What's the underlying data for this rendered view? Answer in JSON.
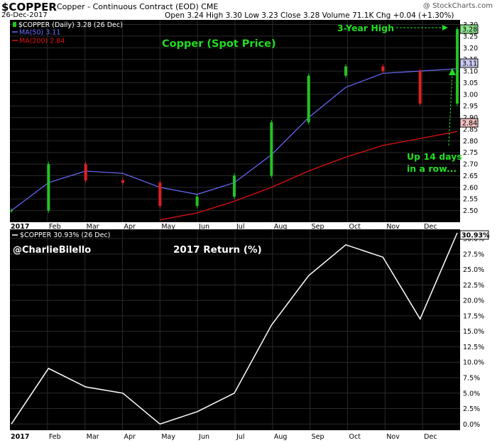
{
  "header": {
    "symbol": "$COPPER",
    "description": "Copper - Continuous Contract (EOD)",
    "exchange": "CME",
    "date": "26-Dec-2017",
    "stats": "Open 3.24  High 3.30  Low 3.23  Close 3.28  Volume 71.1K  Chg +0.04 (+1.30%)",
    "watermark": "@ StockCharts.com"
  },
  "top_panel": {
    "legend_main": "$COPPER (Daily) 3.28 (26 Dec)",
    "legend_ma50": "MA(50) 3.11",
    "legend_ma200": "MA(200) 2.84",
    "title": "Copper (Spot Price)",
    "annotation_high": "3-Year High",
    "annotation_up_line1": "Up 14 days",
    "annotation_up_line2": "in a row...",
    "tag_price": "3.28",
    "tag_ma50": "3.11",
    "tag_ma200": "2.84"
  },
  "bottom_panel": {
    "legend": "$COPPER 30.93% (26 Dec)",
    "handle": "@CharlieBilello",
    "title": "2017 Return (%)",
    "tag_value": "30.93%"
  },
  "colors": {
    "background": "#000000",
    "up_candle": "#22c322",
    "down_candle": "#e02020",
    "ma50": "#6b6bff",
    "ma200": "#e01010",
    "annotation": "#22dd22",
    "return_line": "#ffffff"
  },
  "chart_data": [
    {
      "type": "line",
      "title": "Copper (Spot Price)",
      "x_labels": [
        "2017",
        "Feb",
        "Mar",
        "Apr",
        "May",
        "Jun",
        "Jul",
        "Aug",
        "Sep",
        "Oct",
        "Nov",
        "Dec"
      ],
      "y_ticks": [
        2.5,
        2.55,
        2.6,
        2.65,
        2.7,
        2.75,
        2.8,
        2.85,
        2.9,
        2.95,
        3.0,
        3.05,
        3.1,
        3.15,
        3.2,
        3.25,
        3.3
      ],
      "ylim": [
        2.45,
        3.32
      ],
      "series": [
        {
          "name": "$COPPER (Daily)",
          "x": [
            "Jan",
            "Feb",
            "Mar",
            "Apr",
            "May",
            "Jun",
            "Jul",
            "Aug",
            "Sep",
            "Oct",
            "Nov",
            "Dec",
            "26 Dec"
          ],
          "values": [
            2.5,
            2.7,
            2.63,
            2.62,
            2.52,
            2.56,
            2.65,
            2.88,
            3.08,
            3.12,
            3.1,
            2.96,
            3.28
          ]
        },
        {
          "name": "MA(50)",
          "x": [
            "Jan",
            "Feb",
            "Mar",
            "Apr",
            "May",
            "Jun",
            "Jul",
            "Aug",
            "Sep",
            "Oct",
            "Nov",
            "Dec",
            "26 Dec"
          ],
          "values": [
            2.5,
            2.62,
            2.67,
            2.66,
            2.6,
            2.57,
            2.62,
            2.74,
            2.9,
            3.03,
            3.09,
            3.1,
            3.11
          ]
        },
        {
          "name": "MA(200)",
          "x": [
            "Jan",
            "Feb",
            "Mar",
            "Apr",
            "May",
            "Jun",
            "Jul",
            "Aug",
            "Sep",
            "Oct",
            "Nov",
            "Dec",
            "26 Dec"
          ],
          "values": [
            null,
            null,
            null,
            null,
            2.46,
            2.49,
            2.54,
            2.6,
            2.67,
            2.73,
            2.78,
            2.81,
            2.84
          ]
        }
      ]
    },
    {
      "type": "line",
      "title": "2017 Return (%)",
      "x_labels": [
        "2017",
        "Feb",
        "Mar",
        "Apr",
        "May",
        "Jun",
        "Jul",
        "Aug",
        "Sep",
        "Oct",
        "Nov",
        "Dec"
      ],
      "y_ticks": [
        "0.0%",
        "2.5%",
        "5.0%",
        "7.5%",
        "10.0%",
        "12.5%",
        "15.0%",
        "17.5%",
        "20.0%",
        "22.5%",
        "25.0%",
        "27.5%",
        "30.0%"
      ],
      "ylim": [
        -1,
        31.5
      ],
      "series": [
        {
          "name": "$COPPER",
          "x": [
            "Jan",
            "Feb",
            "Mar",
            "Apr",
            "May",
            "Jun",
            "Jul",
            "Aug",
            "Sep",
            "Oct",
            "Nov",
            "Dec",
            "26 Dec"
          ],
          "values": [
            0,
            9,
            6,
            5,
            0,
            2,
            5,
            16,
            24,
            29,
            27,
            17,
            30.93
          ]
        }
      ]
    }
  ]
}
